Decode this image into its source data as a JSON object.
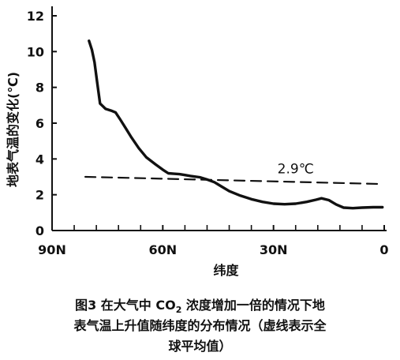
{
  "chart_data": {
    "type": "line",
    "xlabel": "纬度",
    "ylabel": "地表气温的变化(℃)",
    "xlim": [
      90,
      0
    ],
    "ylim": [
      0,
      12
    ],
    "x_ticks": [
      {
        "value": 90,
        "label": "90N"
      },
      {
        "value": 60,
        "label": "60N"
      },
      {
        "value": 30,
        "label": "30N"
      },
      {
        "value": 0,
        "label": "0"
      }
    ],
    "x_minor_ticks": [
      84,
      78,
      72,
      66,
      54,
      48,
      42,
      36,
      24,
      18,
      12,
      6
    ],
    "y_ticks": [
      0,
      2,
      4,
      6,
      8,
      10,
      12
    ],
    "grid": false,
    "series": [
      {
        "style": "solid",
        "x": [
          80,
          79.2,
          78.5,
          77.8,
          77,
          75.5,
          74,
          72.8,
          71.5,
          70,
          68.5,
          66.5,
          64.5,
          62,
          60,
          58.5,
          57,
          55.5,
          54,
          52.5,
          50,
          48,
          46,
          44,
          42,
          39,
          36,
          33,
          30,
          27,
          24,
          21,
          18.5,
          17,
          15,
          13,
          11,
          8.5,
          6,
          3,
          0.5
        ],
        "y": [
          10.6,
          10.1,
          9.4,
          8.3,
          7.1,
          6.8,
          6.7,
          6.6,
          6.2,
          5.7,
          5.2,
          4.6,
          4.1,
          3.7,
          3.4,
          3.2,
          3.17,
          3.15,
          3.1,
          3.05,
          2.98,
          2.85,
          2.7,
          2.45,
          2.2,
          1.95,
          1.75,
          1.6,
          1.5,
          1.47,
          1.5,
          1.6,
          1.72,
          1.8,
          1.7,
          1.45,
          1.28,
          1.25,
          1.28,
          1.3,
          1.3
        ]
      },
      {
        "style": "dashed",
        "x": [
          81,
          0.5
        ],
        "y": [
          3.0,
          2.6
        ]
      }
    ],
    "annotations": [
      {
        "text": "2.9℃",
        "x": 24,
        "y": 3.2
      }
    ]
  },
  "caption": {
    "line1_a": "图3  在大气中 CO",
    "line1_sub": "2",
    "line1_b": " 浓度增加一倍的情况下地",
    "line2": "表气温上升值随纬度的分布情况（虚线表示全",
    "line3": "球平均值）"
  }
}
